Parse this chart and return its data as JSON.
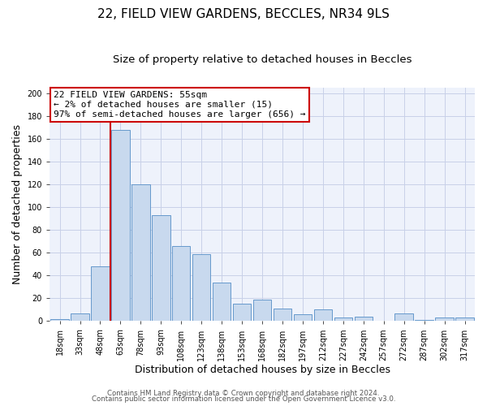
{
  "title1": "22, FIELD VIEW GARDENS, BECCLES, NR34 9LS",
  "title2": "Size of property relative to detached houses in Beccles",
  "xlabel": "Distribution of detached houses by size in Beccles",
  "ylabel": "Number of detached properties",
  "bar_labels": [
    "18sqm",
    "33sqm",
    "48sqm",
    "63sqm",
    "78sqm",
    "93sqm",
    "108sqm",
    "123sqm",
    "138sqm",
    "153sqm",
    "168sqm",
    "182sqm",
    "197sqm",
    "212sqm",
    "227sqm",
    "242sqm",
    "257sqm",
    "272sqm",
    "287sqm",
    "302sqm",
    "317sqm"
  ],
  "bar_values": [
    2,
    7,
    48,
    168,
    120,
    93,
    66,
    59,
    34,
    15,
    19,
    11,
    6,
    10,
    3,
    4,
    0,
    7,
    1,
    3,
    3
  ],
  "bar_color": "#c8d9ee",
  "bar_edge_color": "#6699cc",
  "vline_x": 2.5,
  "vline_color": "#cc0000",
  "ylim": [
    0,
    205
  ],
  "yticks": [
    0,
    20,
    40,
    60,
    80,
    100,
    120,
    140,
    160,
    180,
    200
  ],
  "annotation_title": "22 FIELD VIEW GARDENS: 55sqm",
  "annotation_line1": "← 2% of detached houses are smaller (15)",
  "annotation_line2": "97% of semi-detached houses are larger (656) →",
  "annotation_box_color": "#ffffff",
  "annotation_box_edge": "#cc0000",
  "footer1": "Contains HM Land Registry data © Crown copyright and database right 2024.",
  "footer2": "Contains public sector information licensed under the Open Government Licence v3.0.",
  "bg_color": "#ffffff",
  "plot_bg_color": "#eef2fb",
  "title1_fontsize": 11,
  "title2_fontsize": 9.5,
  "grid_color": "#c8d0e8"
}
